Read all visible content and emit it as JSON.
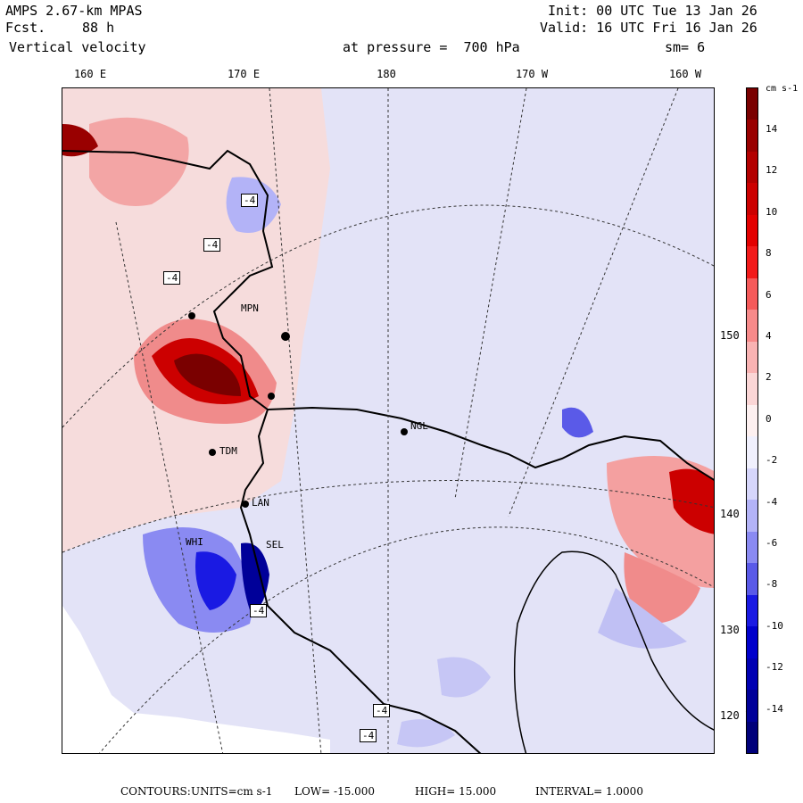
{
  "header": {
    "model": "AMPS 2.67-km MPAS",
    "forecast_label": "Fcst.",
    "forecast_value": "88 h",
    "field": "Vertical velocity",
    "init": "Init: 00 UTC Tue 13 Jan 26",
    "valid": "Valid: 16 UTC Fri 16 Jan 26",
    "pressure": "at pressure =  700 hPa",
    "smoothing": "sm= 6"
  },
  "lon_labels": [
    "160 E",
    "170 E",
    "180",
    "170 W",
    "160 W"
  ],
  "lat_labels": [
    "150 W",
    "140 W",
    "130 W",
    "120 W"
  ],
  "stations": [
    "NGL",
    "LAN",
    "TDM",
    "SEL",
    "WHI",
    "MPN"
  ],
  "boxes": [
    "-4",
    "-4",
    "-4",
    "-4",
    "-4",
    "-4"
  ],
  "colorbar": {
    "units": "cm s-1",
    "ticks": [
      "14",
      "12",
      "10",
      "8",
      "6",
      "4",
      "2",
      "0",
      "-2",
      "-4",
      "-6",
      "-8",
      "-10",
      "-12",
      "-14"
    ],
    "colors": [
      "#7a0000",
      "#990000",
      "#b30000",
      "#cc0000",
      "#e30000",
      "#f21a1a",
      "#f55a5a",
      "#f78a8a",
      "#f9b3b3",
      "#fbd6d6",
      "#fdf0f0",
      "#f0f0fd",
      "#d6d6fb",
      "#b3b3f7",
      "#8a8af2",
      "#5a5ae8",
      "#1a1ae3",
      "#0000cc",
      "#0000b3",
      "#000099",
      "#00007a"
    ]
  },
  "footer": {
    "label": "CONTOURS:",
    "units": "UNITS=cm s-1",
    "low": "LOW= -15.000",
    "high": "HIGH= 15.000",
    "interval": "INTERVAL= 1.0000"
  }
}
